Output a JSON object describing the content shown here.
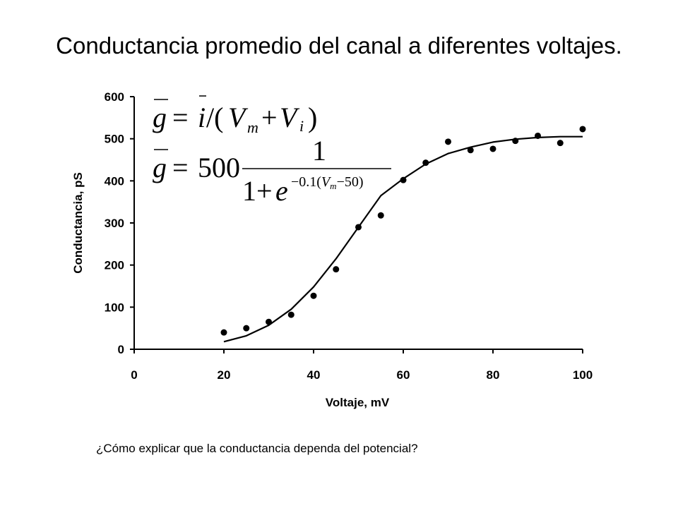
{
  "title": "Conductancia promedio del canal a diferentes voltajes.",
  "question": "¿Cómo explicar que la conductancia dependa del potencial?",
  "equations": {
    "eq1": {
      "lhs": "g",
      "eq": "=",
      "i": "i",
      "div": "/(",
      "V": "V",
      "m": "m",
      "plus": "+",
      "Vi": "V",
      "i_sub": "i",
      "close": ")"
    },
    "eq2": {
      "lhs": "g",
      "eq": "=",
      "coef": "500",
      "num": "1",
      "den_base": "1+",
      "e": "e",
      "exp": "−0.1(",
      "V": "V",
      "m": "m",
      "exp_tail": "−50)"
    }
  },
  "chart_data": {
    "type": "scatter",
    "xlabel": "Voltaje, mV",
    "ylabel": "Conductancia, pS",
    "xlim": [
      0,
      100
    ],
    "ylim": [
      0,
      600
    ],
    "xticks": [
      "0",
      "20",
      "40",
      "60",
      "80",
      "100"
    ],
    "yticks": [
      "0",
      "100",
      "200",
      "300",
      "400",
      "500",
      "600"
    ],
    "grid": false,
    "series": [
      {
        "kind": "points",
        "x": [
          20,
          25,
          30,
          35,
          40,
          45,
          50,
          55,
          60,
          65,
          70,
          75,
          80,
          85,
          90,
          95,
          100
        ],
        "y": [
          40,
          50,
          65,
          82,
          127,
          190,
          290,
          318,
          402,
          443,
          493,
          473,
          476,
          495,
          507,
          490,
          523
        ],
        "color": "#000000"
      },
      {
        "kind": "line",
        "x": [
          20,
          25,
          30,
          35,
          40,
          45,
          50,
          55,
          60,
          65,
          70,
          75,
          80,
          85,
          90,
          95,
          100
        ],
        "y": [
          18,
          32,
          57,
          95,
          148,
          215,
          290,
          365,
          405,
          440,
          465,
          480,
          492,
          499,
          503,
          505,
          505
        ],
        "color": "#000000"
      }
    ]
  }
}
